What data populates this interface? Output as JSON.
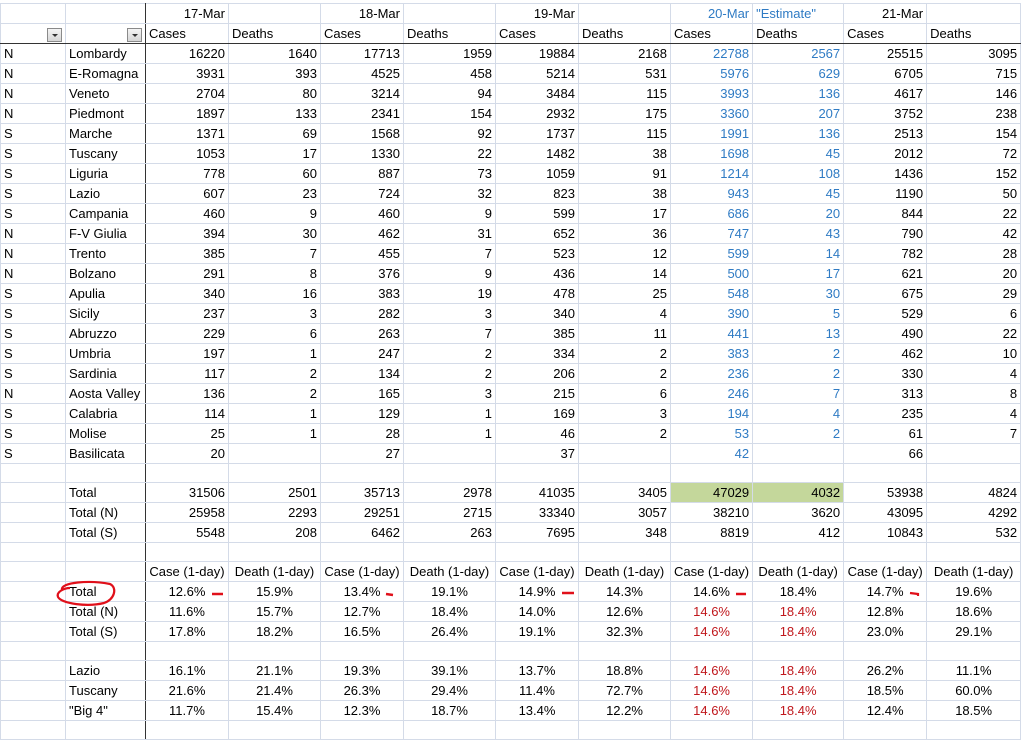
{
  "header": {
    "dates": [
      "17-Mar",
      "18-Mar",
      "19-Mar",
      "20-Mar",
      "21-Mar"
    ],
    "estimate_label": "\"Estimate\"",
    "cases_label": "Cases",
    "deaths_label": "Deaths"
  },
  "regions": [
    {
      "zone": "N",
      "name": "Lombardy",
      "values": [
        "16220",
        "1640",
        "17713",
        "1959",
        "19884",
        "2168",
        "22788",
        "2567",
        "25515",
        "3095"
      ]
    },
    {
      "zone": "N",
      "name": "E-Romagna",
      "values": [
        "3931",
        "393",
        "4525",
        "458",
        "5214",
        "531",
        "5976",
        "629",
        "6705",
        "715"
      ]
    },
    {
      "zone": "N",
      "name": "Veneto",
      "values": [
        "2704",
        "80",
        "3214",
        "94",
        "3484",
        "115",
        "3993",
        "136",
        "4617",
        "146"
      ]
    },
    {
      "zone": "N",
      "name": "Piedmont",
      "values": [
        "1897",
        "133",
        "2341",
        "154",
        "2932",
        "175",
        "3360",
        "207",
        "3752",
        "238"
      ]
    },
    {
      "zone": "S",
      "name": "Marche",
      "values": [
        "1371",
        "69",
        "1568",
        "92",
        "1737",
        "115",
        "1991",
        "136",
        "2513",
        "154"
      ]
    },
    {
      "zone": "S",
      "name": "Tuscany",
      "values": [
        "1053",
        "17",
        "1330",
        "22",
        "1482",
        "38",
        "1698",
        "45",
        "2012",
        "72"
      ]
    },
    {
      "zone": "S",
      "name": "Liguria",
      "values": [
        "778",
        "60",
        "887",
        "73",
        "1059",
        "91",
        "1214",
        "108",
        "1436",
        "152"
      ]
    },
    {
      "zone": "S",
      "name": "Lazio",
      "values": [
        "607",
        "23",
        "724",
        "32",
        "823",
        "38",
        "943",
        "45",
        "1190",
        "50"
      ]
    },
    {
      "zone": "S",
      "name": "Campania",
      "values": [
        "460",
        "9",
        "460",
        "9",
        "599",
        "17",
        "686",
        "20",
        "844",
        "22"
      ]
    },
    {
      "zone": "N",
      "name": "F-V Giulia",
      "values": [
        "394",
        "30",
        "462",
        "31",
        "652",
        "36",
        "747",
        "43",
        "790",
        "42"
      ]
    },
    {
      "zone": "N",
      "name": "Trento",
      "values": [
        "385",
        "7",
        "455",
        "7",
        "523",
        "12",
        "599",
        "14",
        "782",
        "28"
      ]
    },
    {
      "zone": "N",
      "name": "Bolzano",
      "values": [
        "291",
        "8",
        "376",
        "9",
        "436",
        "14",
        "500",
        "17",
        "621",
        "20"
      ]
    },
    {
      "zone": "S",
      "name": "Apulia",
      "values": [
        "340",
        "16",
        "383",
        "19",
        "478",
        "25",
        "548",
        "30",
        "675",
        "29"
      ]
    },
    {
      "zone": "S",
      "name": "Sicily",
      "values": [
        "237",
        "3",
        "282",
        "3",
        "340",
        "4",
        "390",
        "5",
        "529",
        "6"
      ]
    },
    {
      "zone": "S",
      "name": "Abruzzo",
      "values": [
        "229",
        "6",
        "263",
        "7",
        "385",
        "11",
        "441",
        "13",
        "490",
        "22"
      ]
    },
    {
      "zone": "S",
      "name": "Umbria",
      "values": [
        "197",
        "1",
        "247",
        "2",
        "334",
        "2",
        "383",
        "2",
        "462",
        "10"
      ]
    },
    {
      "zone": "S",
      "name": "Sardinia",
      "values": [
        "117",
        "2",
        "134",
        "2",
        "206",
        "2",
        "236",
        "2",
        "330",
        "4"
      ]
    },
    {
      "zone": "N",
      "name": "Aosta Valley",
      "values": [
        "136",
        "2",
        "165",
        "3",
        "215",
        "6",
        "246",
        "7",
        "313",
        "8"
      ]
    },
    {
      "zone": "S",
      "name": "Calabria",
      "values": [
        "114",
        "1",
        "129",
        "1",
        "169",
        "3",
        "194",
        "4",
        "235",
        "4"
      ]
    },
    {
      "zone": "S",
      "name": "Molise",
      "values": [
        "25",
        "1",
        "28",
        "1",
        "46",
        "2",
        "53",
        "2",
        "61",
        "7"
      ]
    },
    {
      "zone": "S",
      "name": "Basilicata",
      "values": [
        "20",
        "",
        "27",
        "",
        "37",
        "",
        "42",
        "",
        "66",
        ""
      ]
    }
  ],
  "totals": [
    {
      "name": "Total",
      "values": [
        "31506",
        "2501",
        "35713",
        "2978",
        "41035",
        "3405",
        "47029",
        "4032",
        "53938",
        "4824"
      ]
    },
    {
      "name": "Total (N)",
      "values": [
        "25958",
        "2293",
        "29251",
        "2715",
        "33340",
        "3057",
        "38210",
        "3620",
        "43095",
        "4292"
      ]
    },
    {
      "name": "Total (S)",
      "values": [
        "5548",
        "208",
        "6462",
        "263",
        "7695",
        "348",
        "8819",
        "412",
        "10843",
        "532"
      ]
    }
  ],
  "growth_header": {
    "case_label": "Case (1-day)",
    "death_label": "Death (1-day)"
  },
  "growth_totals": [
    {
      "name": "Total",
      "values": [
        "12.6%",
        "15.9%",
        "13.4%",
        "19.1%",
        "14.9%",
        "14.3%",
        "14.6%",
        "18.4%",
        "14.7%",
        "19.6%"
      ]
    },
    {
      "name": "Total (N)",
      "values": [
        "11.6%",
        "15.7%",
        "12.7%",
        "18.4%",
        "14.0%",
        "12.6%",
        "14.6%",
        "18.4%",
        "12.8%",
        "18.6%"
      ]
    },
    {
      "name": "Total (S)",
      "values": [
        "17.8%",
        "18.2%",
        "16.5%",
        "26.4%",
        "19.1%",
        "32.3%",
        "14.6%",
        "18.4%",
        "23.0%",
        "29.1%"
      ]
    }
  ],
  "growth_regions": [
    {
      "name": "Lazio",
      "values": [
        "16.1%",
        "21.1%",
        "19.3%",
        "39.1%",
        "13.7%",
        "18.8%",
        "14.6%",
        "18.4%",
        "26.2%",
        "11.1%"
      ]
    },
    {
      "name": "Tuscany",
      "values": [
        "21.6%",
        "21.4%",
        "26.3%",
        "29.4%",
        "11.4%",
        "72.7%",
        "14.6%",
        "18.4%",
        "18.5%",
        "60.0%"
      ]
    },
    {
      "name": "\"Big 4\"",
      "values": [
        "11.7%",
        "15.4%",
        "12.3%",
        "18.7%",
        "13.4%",
        "12.2%",
        "14.6%",
        "18.4%",
        "12.4%",
        "18.5%"
      ]
    }
  ],
  "colors": {
    "estimate_blue": "#2f7bc4",
    "assumed_red": "#c0171c",
    "highlight_green": "#c4d79b",
    "annotation_red": "#e0101a"
  }
}
